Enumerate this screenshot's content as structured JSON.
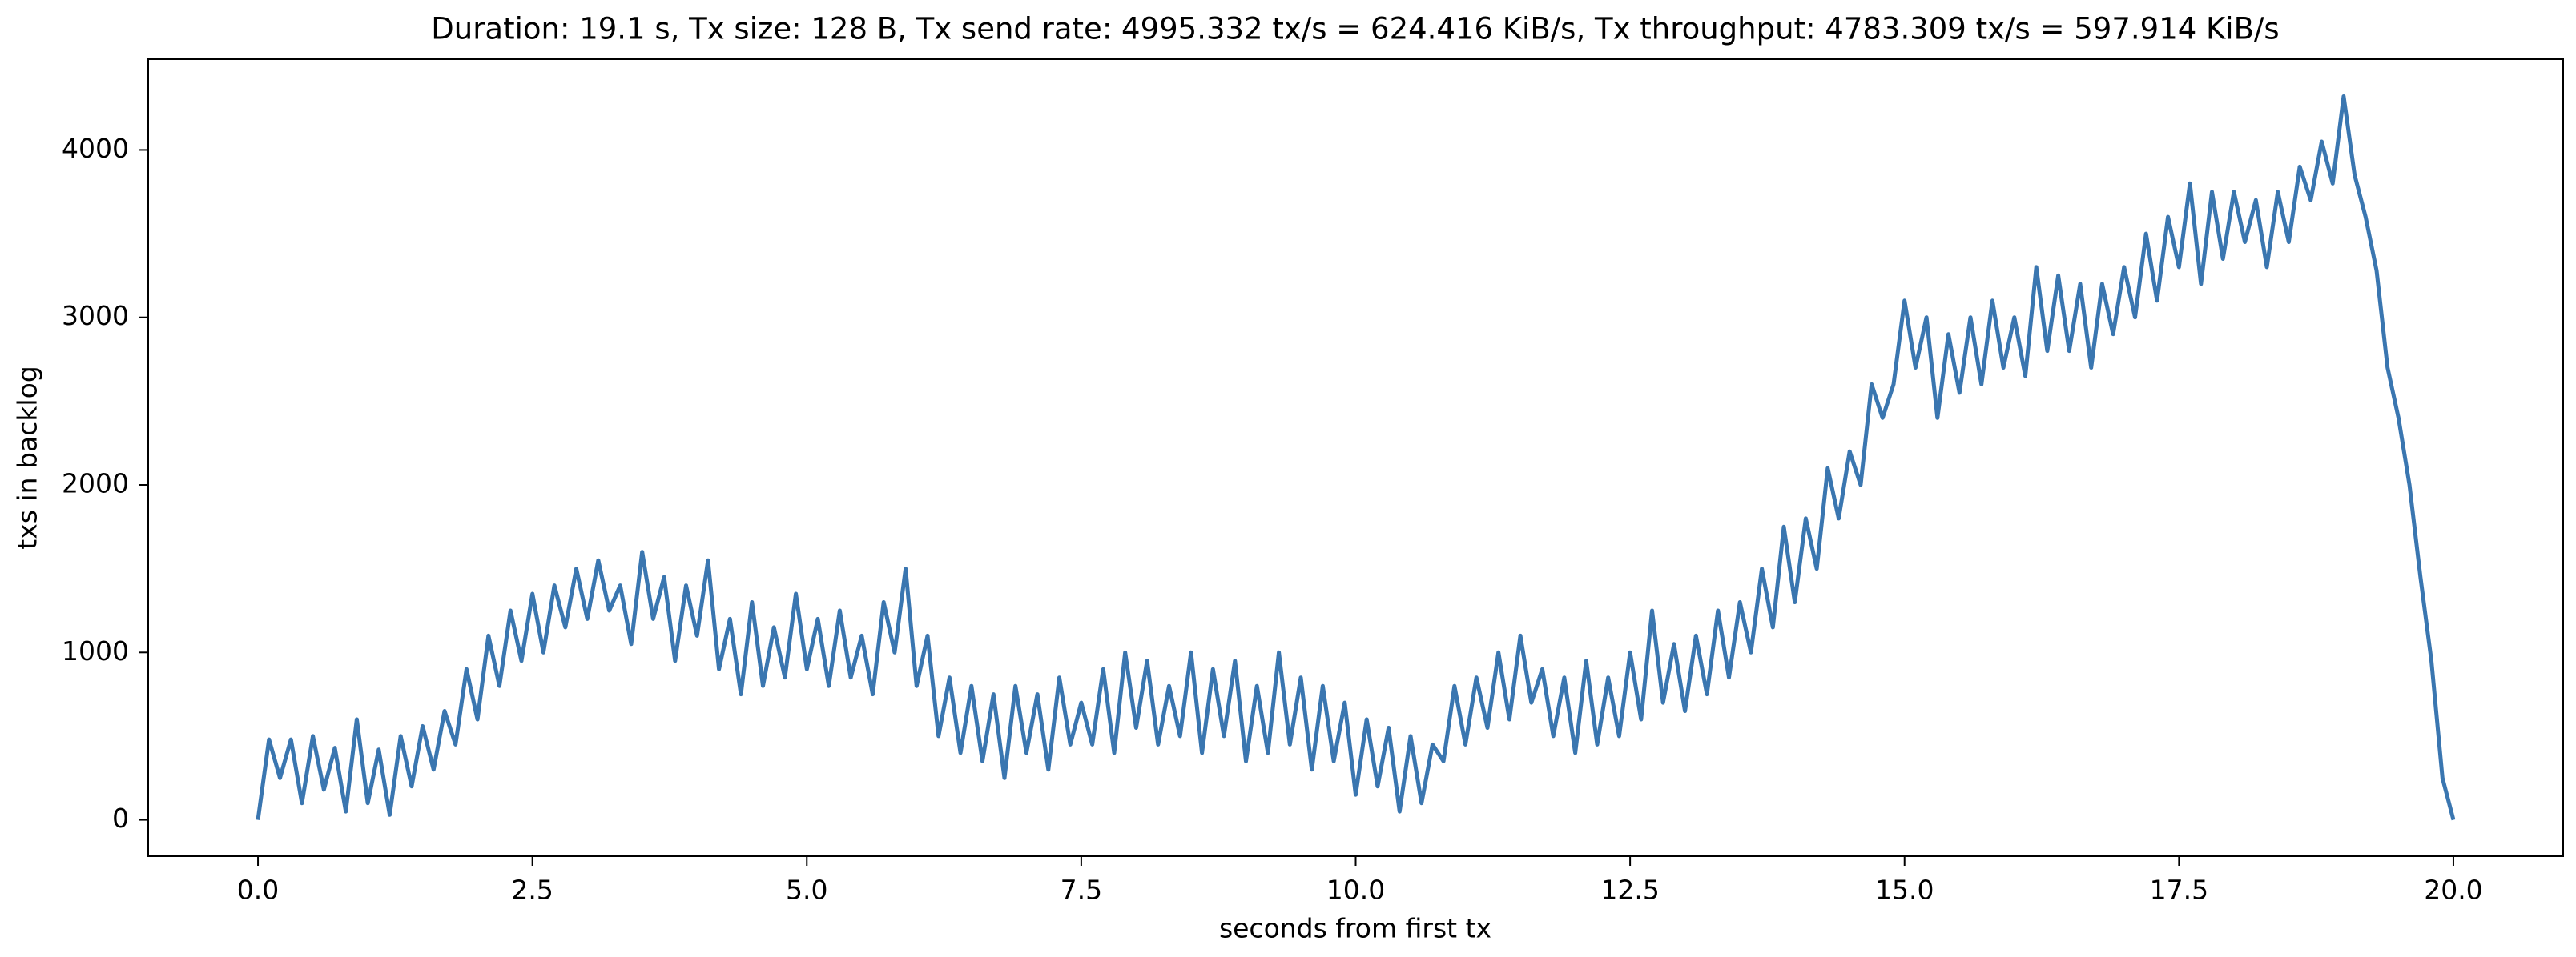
{
  "chart_data": {
    "type": "line",
    "title": "Duration: 19.1 s, Tx size: 128 B, Tx send rate: 4995.332 tx/s = 624.416 KiB/s, Tx throughput: 4783.309 tx/s = 597.914 KiB/s",
    "xlabel": "seconds from first tx",
    "ylabel": "txs in backlog",
    "color": "#3a76b0",
    "x": [
      0.0,
      0.1,
      0.2,
      0.3,
      0.4,
      0.5,
      0.6,
      0.7,
      0.8,
      0.9,
      1.0,
      1.1,
      1.2,
      1.3,
      1.4,
      1.5,
      1.6,
      1.7,
      1.8,
      1.9,
      2.0,
      2.1,
      2.2,
      2.3,
      2.4,
      2.5,
      2.6,
      2.7,
      2.8,
      2.9,
      3.0,
      3.1,
      3.2,
      3.3,
      3.4,
      3.5,
      3.6,
      3.7,
      3.8,
      3.9,
      4.0,
      4.1,
      4.2,
      4.3,
      4.4,
      4.5,
      4.6,
      4.7,
      4.8,
      4.9,
      5.0,
      5.1,
      5.2,
      5.3,
      5.4,
      5.5,
      5.6,
      5.7,
      5.8,
      5.9,
      6.0,
      6.1,
      6.2,
      6.3,
      6.4,
      6.5,
      6.6,
      6.7,
      6.8,
      6.9,
      7.0,
      7.1,
      7.2,
      7.3,
      7.4,
      7.5,
      7.6,
      7.7,
      7.8,
      7.9,
      8.0,
      8.1,
      8.2,
      8.3,
      8.4,
      8.5,
      8.6,
      8.7,
      8.8,
      8.9,
      9.0,
      9.1,
      9.2,
      9.3,
      9.4,
      9.5,
      9.6,
      9.7,
      9.8,
      9.9,
      10.0,
      10.1,
      10.2,
      10.3,
      10.4,
      10.5,
      10.6,
      10.7,
      10.8,
      10.9,
      11.0,
      11.1,
      11.2,
      11.3,
      11.4,
      11.5,
      11.6,
      11.7,
      11.8,
      11.9,
      12.0,
      12.1,
      12.2,
      12.3,
      12.4,
      12.5,
      12.6,
      12.7,
      12.8,
      12.9,
      13.0,
      13.1,
      13.2,
      13.3,
      13.4,
      13.5,
      13.6,
      13.7,
      13.8,
      13.9,
      14.0,
      14.1,
      14.2,
      14.3,
      14.4,
      14.5,
      14.6,
      14.7,
      14.8,
      14.9,
      15.0,
      15.1,
      15.2,
      15.3,
      15.4,
      15.5,
      15.6,
      15.7,
      15.8,
      15.9,
      16.0,
      16.1,
      16.2,
      16.3,
      16.4,
      16.5,
      16.6,
      16.7,
      16.8,
      16.9,
      17.0,
      17.1,
      17.2,
      17.3,
      17.4,
      17.5,
      17.6,
      17.7,
      17.8,
      17.9,
      18.0,
      18.1,
      18.2,
      18.3,
      18.4,
      18.5,
      18.6,
      18.7,
      18.8,
      18.9,
      19.0,
      19.1,
      19.2,
      19.3,
      19.4,
      19.5,
      19.6,
      19.7,
      19.8,
      19.9,
      20.0
    ],
    "values": [
      0,
      480,
      250,
      480,
      100,
      500,
      180,
      430,
      50,
      600,
      100,
      420,
      30,
      500,
      200,
      560,
      300,
      650,
      450,
      900,
      600,
      1100,
      800,
      1250,
      950,
      1350,
      1000,
      1400,
      1150,
      1500,
      1200,
      1550,
      1250,
      1400,
      1050,
      1600,
      1200,
      1450,
      950,
      1400,
      1100,
      1550,
      900,
      1200,
      750,
      1300,
      800,
      1150,
      850,
      1350,
      900,
      1200,
      800,
      1250,
      850,
      1100,
      750,
      1300,
      1000,
      1500,
      800,
      1100,
      500,
      850,
      400,
      800,
      350,
      750,
      250,
      800,
      400,
      750,
      300,
      850,
      450,
      700,
      450,
      900,
      400,
      1000,
      550,
      950,
      450,
      800,
      500,
      1000,
      400,
      900,
      500,
      950,
      350,
      800,
      400,
      1000,
      450,
      850,
      300,
      800,
      350,
      700,
      150,
      600,
      200,
      550,
      50,
      500,
      100,
      450,
      350,
      800,
      450,
      850,
      550,
      1000,
      600,
      1100,
      700,
      900,
      500,
      850,
      400,
      950,
      450,
      850,
      500,
      1000,
      600,
      1250,
      700,
      1050,
      650,
      1100,
      750,
      1250,
      850,
      1300,
      1000,
      1500,
      1150,
      1750,
      1300,
      1800,
      1500,
      2100,
      1800,
      2200,
      2000,
      2600,
      2400,
      2600,
      3100,
      2700,
      3000,
      2400,
      2900,
      2550,
      3000,
      2600,
      3100,
      2700,
      3000,
      2650,
      3300,
      2800,
      3250,
      2800,
      3200,
      2700,
      3200,
      2900,
      3300,
      3000,
      3500,
      3100,
      3600,
      3300,
      3800,
      3200,
      3750,
      3350,
      3750,
      3450,
      3700,
      3300,
      3750,
      3450,
      3900,
      3700,
      4050,
      3800,
      4320,
      3850,
      3600,
      3280,
      2700,
      2400,
      2000,
      1450,
      950,
      250,
      0
    ],
    "xlim": [
      -1.0,
      21.0
    ],
    "xticks": [
      {
        "value": 0,
        "label": "0.0"
      },
      2.5,
      {
        "value": 5,
        "label": "5.0"
      },
      7.5,
      {
        "value": 10,
        "label": "10.0"
      },
      12.5,
      {
        "value": 15,
        "label": "15.0"
      },
      17.5,
      {
        "value": 20,
        "label": "20.0"
      }
    ],
    "ylim": [
      -217,
      4542
    ],
    "yticks": [
      0,
      1000,
      2000,
      3000,
      4000
    ],
    "grid": false
  }
}
